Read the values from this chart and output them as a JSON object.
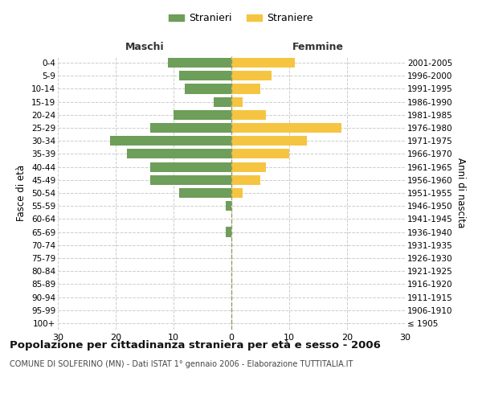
{
  "age_groups": [
    "100+",
    "95-99",
    "90-94",
    "85-89",
    "80-84",
    "75-79",
    "70-74",
    "65-69",
    "60-64",
    "55-59",
    "50-54",
    "45-49",
    "40-44",
    "35-39",
    "30-34",
    "25-29",
    "20-24",
    "15-19",
    "10-14",
    "5-9",
    "0-4"
  ],
  "birth_years": [
    "≤ 1905",
    "1906-1910",
    "1911-1915",
    "1916-1920",
    "1921-1925",
    "1926-1930",
    "1931-1935",
    "1936-1940",
    "1941-1945",
    "1946-1950",
    "1951-1955",
    "1956-1960",
    "1961-1965",
    "1966-1970",
    "1971-1975",
    "1976-1980",
    "1981-1985",
    "1986-1990",
    "1991-1995",
    "1996-2000",
    "2001-2005"
  ],
  "males": [
    0,
    0,
    0,
    0,
    0,
    0,
    0,
    1,
    0,
    1,
    9,
    14,
    14,
    18,
    21,
    14,
    10,
    3,
    8,
    9,
    11
  ],
  "females": [
    0,
    0,
    0,
    0,
    0,
    0,
    0,
    0,
    0,
    0,
    2,
    5,
    6,
    10,
    13,
    19,
    6,
    2,
    5,
    7,
    11
  ],
  "male_color": "#6d9e5a",
  "female_color": "#f5c542",
  "background_color": "#ffffff",
  "grid_color": "#cccccc",
  "center_line_color": "#999966",
  "xlim": 30,
  "title": "Popolazione per cittadinanza straniera per età e sesso - 2006",
  "subtitle": "COMUNE DI SOLFERINO (MN) - Dati ISTAT 1° gennaio 2006 - Elaborazione TUTTITALIA.IT",
  "ylabel_left": "Fasce di età",
  "ylabel_right": "Anni di nascita",
  "legend_stranieri": "Stranieri",
  "legend_straniere": "Straniere",
  "maschi_label": "Maschi",
  "femmine_label": "Femmine"
}
